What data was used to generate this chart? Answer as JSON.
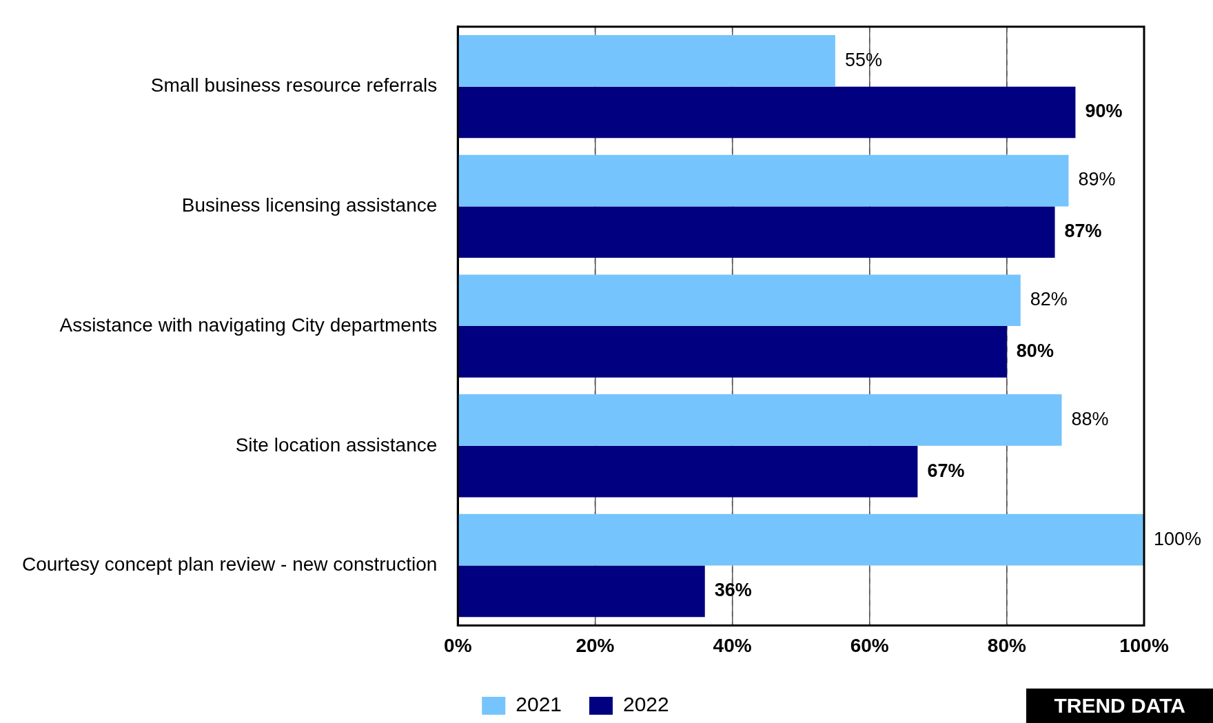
{
  "chart_data": {
    "type": "bar",
    "orientation": "horizontal",
    "categories": [
      "Small business resource referrals",
      "Business licensing assistance",
      "Assistance with navigating City departments",
      "Site location assistance",
      "Courtesy concept plan review - new construction"
    ],
    "series": [
      {
        "name": "2021",
        "color": "#75c4fd",
        "values": [
          55,
          89,
          82,
          88,
          100
        ],
        "value_labels": [
          "55%",
          "89%",
          "82%",
          "88%",
          "100%"
        ]
      },
      {
        "name": "2022",
        "color": "#000080",
        "values": [
          90,
          87,
          80,
          67,
          36
        ],
        "value_labels": [
          "90%",
          "87%",
          "80%",
          "67%",
          "36%"
        ]
      }
    ],
    "xlim": [
      0,
      100
    ],
    "xticks": [
      {
        "value": 0,
        "label": "0%"
      },
      {
        "value": 20,
        "label": "20%"
      },
      {
        "value": 40,
        "label": "40%"
      },
      {
        "value": 60,
        "label": "60%"
      },
      {
        "value": 80,
        "label": "80%"
      },
      {
        "value": 100,
        "label": "100%"
      }
    ],
    "grid": "x",
    "legend": "bottom",
    "annotations": [
      "TREND DATA"
    ]
  }
}
